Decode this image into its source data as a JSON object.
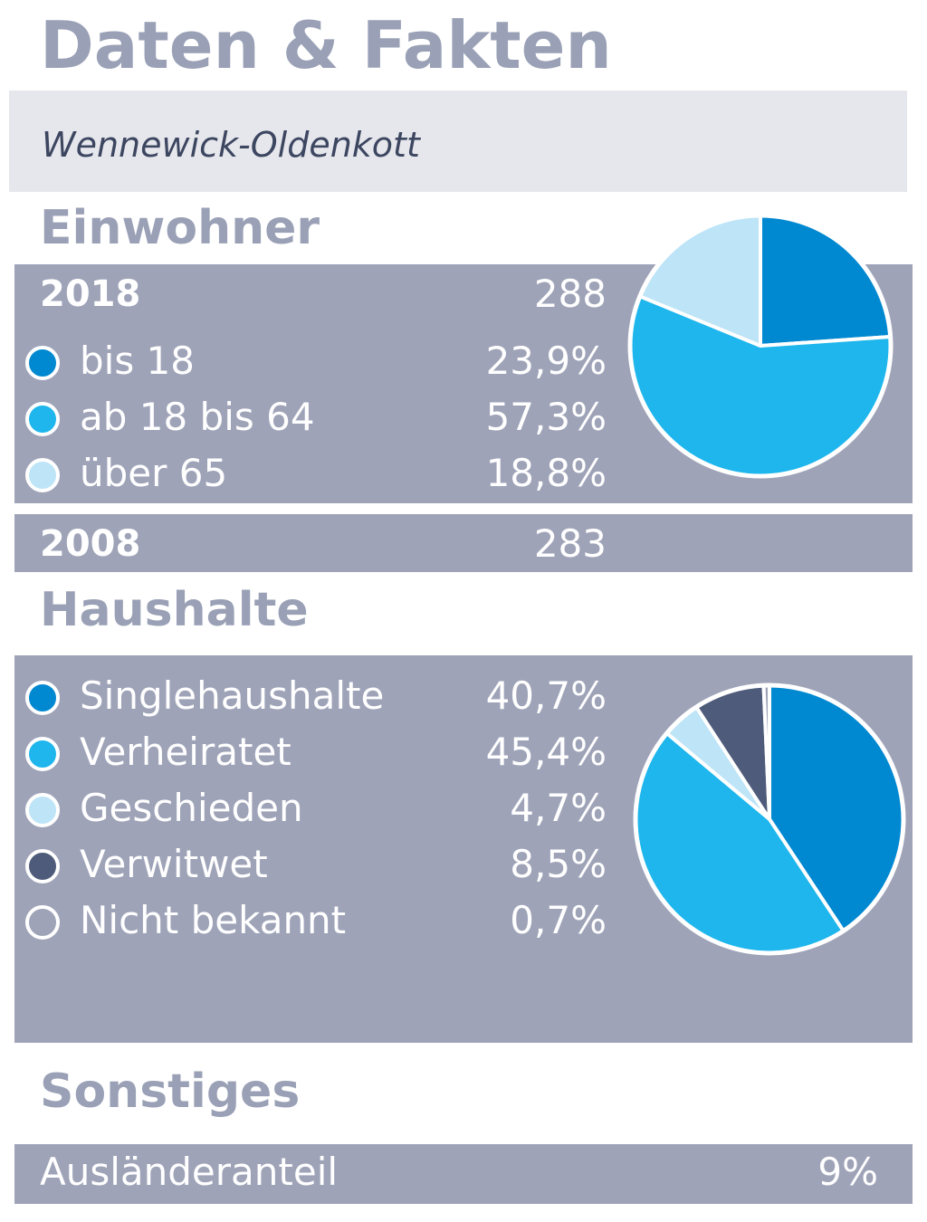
{
  "title": "Daten & Fakten",
  "location": "Wennewick-Oldenkott",
  "einwohner": {
    "heading": "Einwohner",
    "year_current": "2018",
    "total_current": "288",
    "year_previous": "2008",
    "total_previous": "283",
    "groups": [
      {
        "label": "bis 18",
        "value_text": "23,9%",
        "color": "#0088d1"
      },
      {
        "label": "ab 18 bis 64",
        "value_text": "57,3%",
        "color": "#1eb6ec"
      },
      {
        "label": "über 65",
        "value_text": "18,8%",
        "color": "#bde4f7"
      }
    ]
  },
  "haushalte": {
    "heading": "Haushalte",
    "groups": [
      {
        "label": "Singlehaushalte",
        "value_text": "40,7%",
        "color": "#0088d1"
      },
      {
        "label": "Verheiratet",
        "value_text": "45,4%",
        "color": "#1eb6ec"
      },
      {
        "label": "Geschieden",
        "value_text": "4,7%",
        "color": "#bde4f7"
      },
      {
        "label": "Verwitwet",
        "value_text": "8,5%",
        "color": "#4e5b7a"
      },
      {
        "label": "Nicht bekannt",
        "value_text": "0,7%",
        "color": "#9ea3b8"
      }
    ]
  },
  "sonstiges": {
    "heading": "Sonstiges",
    "label": "Ausländeranteil",
    "value": "9%"
  },
  "chart_data": [
    {
      "type": "pie",
      "categories": [
        "bis 18",
        "ab 18 bis 64",
        "über 65"
      ],
      "values": [
        23.9,
        57.3,
        18.8
      ],
      "colors": [
        "#0088d1",
        "#1eb6ec",
        "#bde4f7"
      ]
    },
    {
      "type": "pie",
      "categories": [
        "Singlehaushalte",
        "Verheiratet",
        "Geschieden",
        "Verwitwet",
        "Nicht bekannt"
      ],
      "values": [
        40.7,
        45.4,
        4.7,
        8.5,
        0.7
      ],
      "colors": [
        "#0088d1",
        "#1eb6ec",
        "#bde4f7",
        "#4e5b7a",
        "#9ea3b8"
      ]
    }
  ]
}
